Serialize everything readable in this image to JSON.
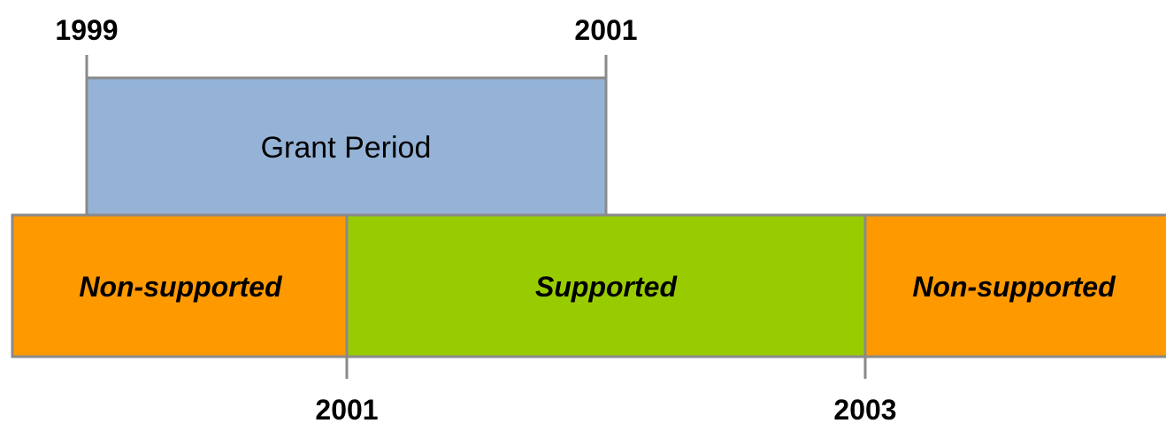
{
  "grant_period": {
    "label": "Grant Period",
    "start_label": "1999",
    "end_label": "2001"
  },
  "segments": [
    {
      "label": "Non-supported"
    },
    {
      "label": "Supported"
    },
    {
      "label": "Non-supported"
    }
  ],
  "bottom_ticks": [
    "2001",
    "2003"
  ]
}
